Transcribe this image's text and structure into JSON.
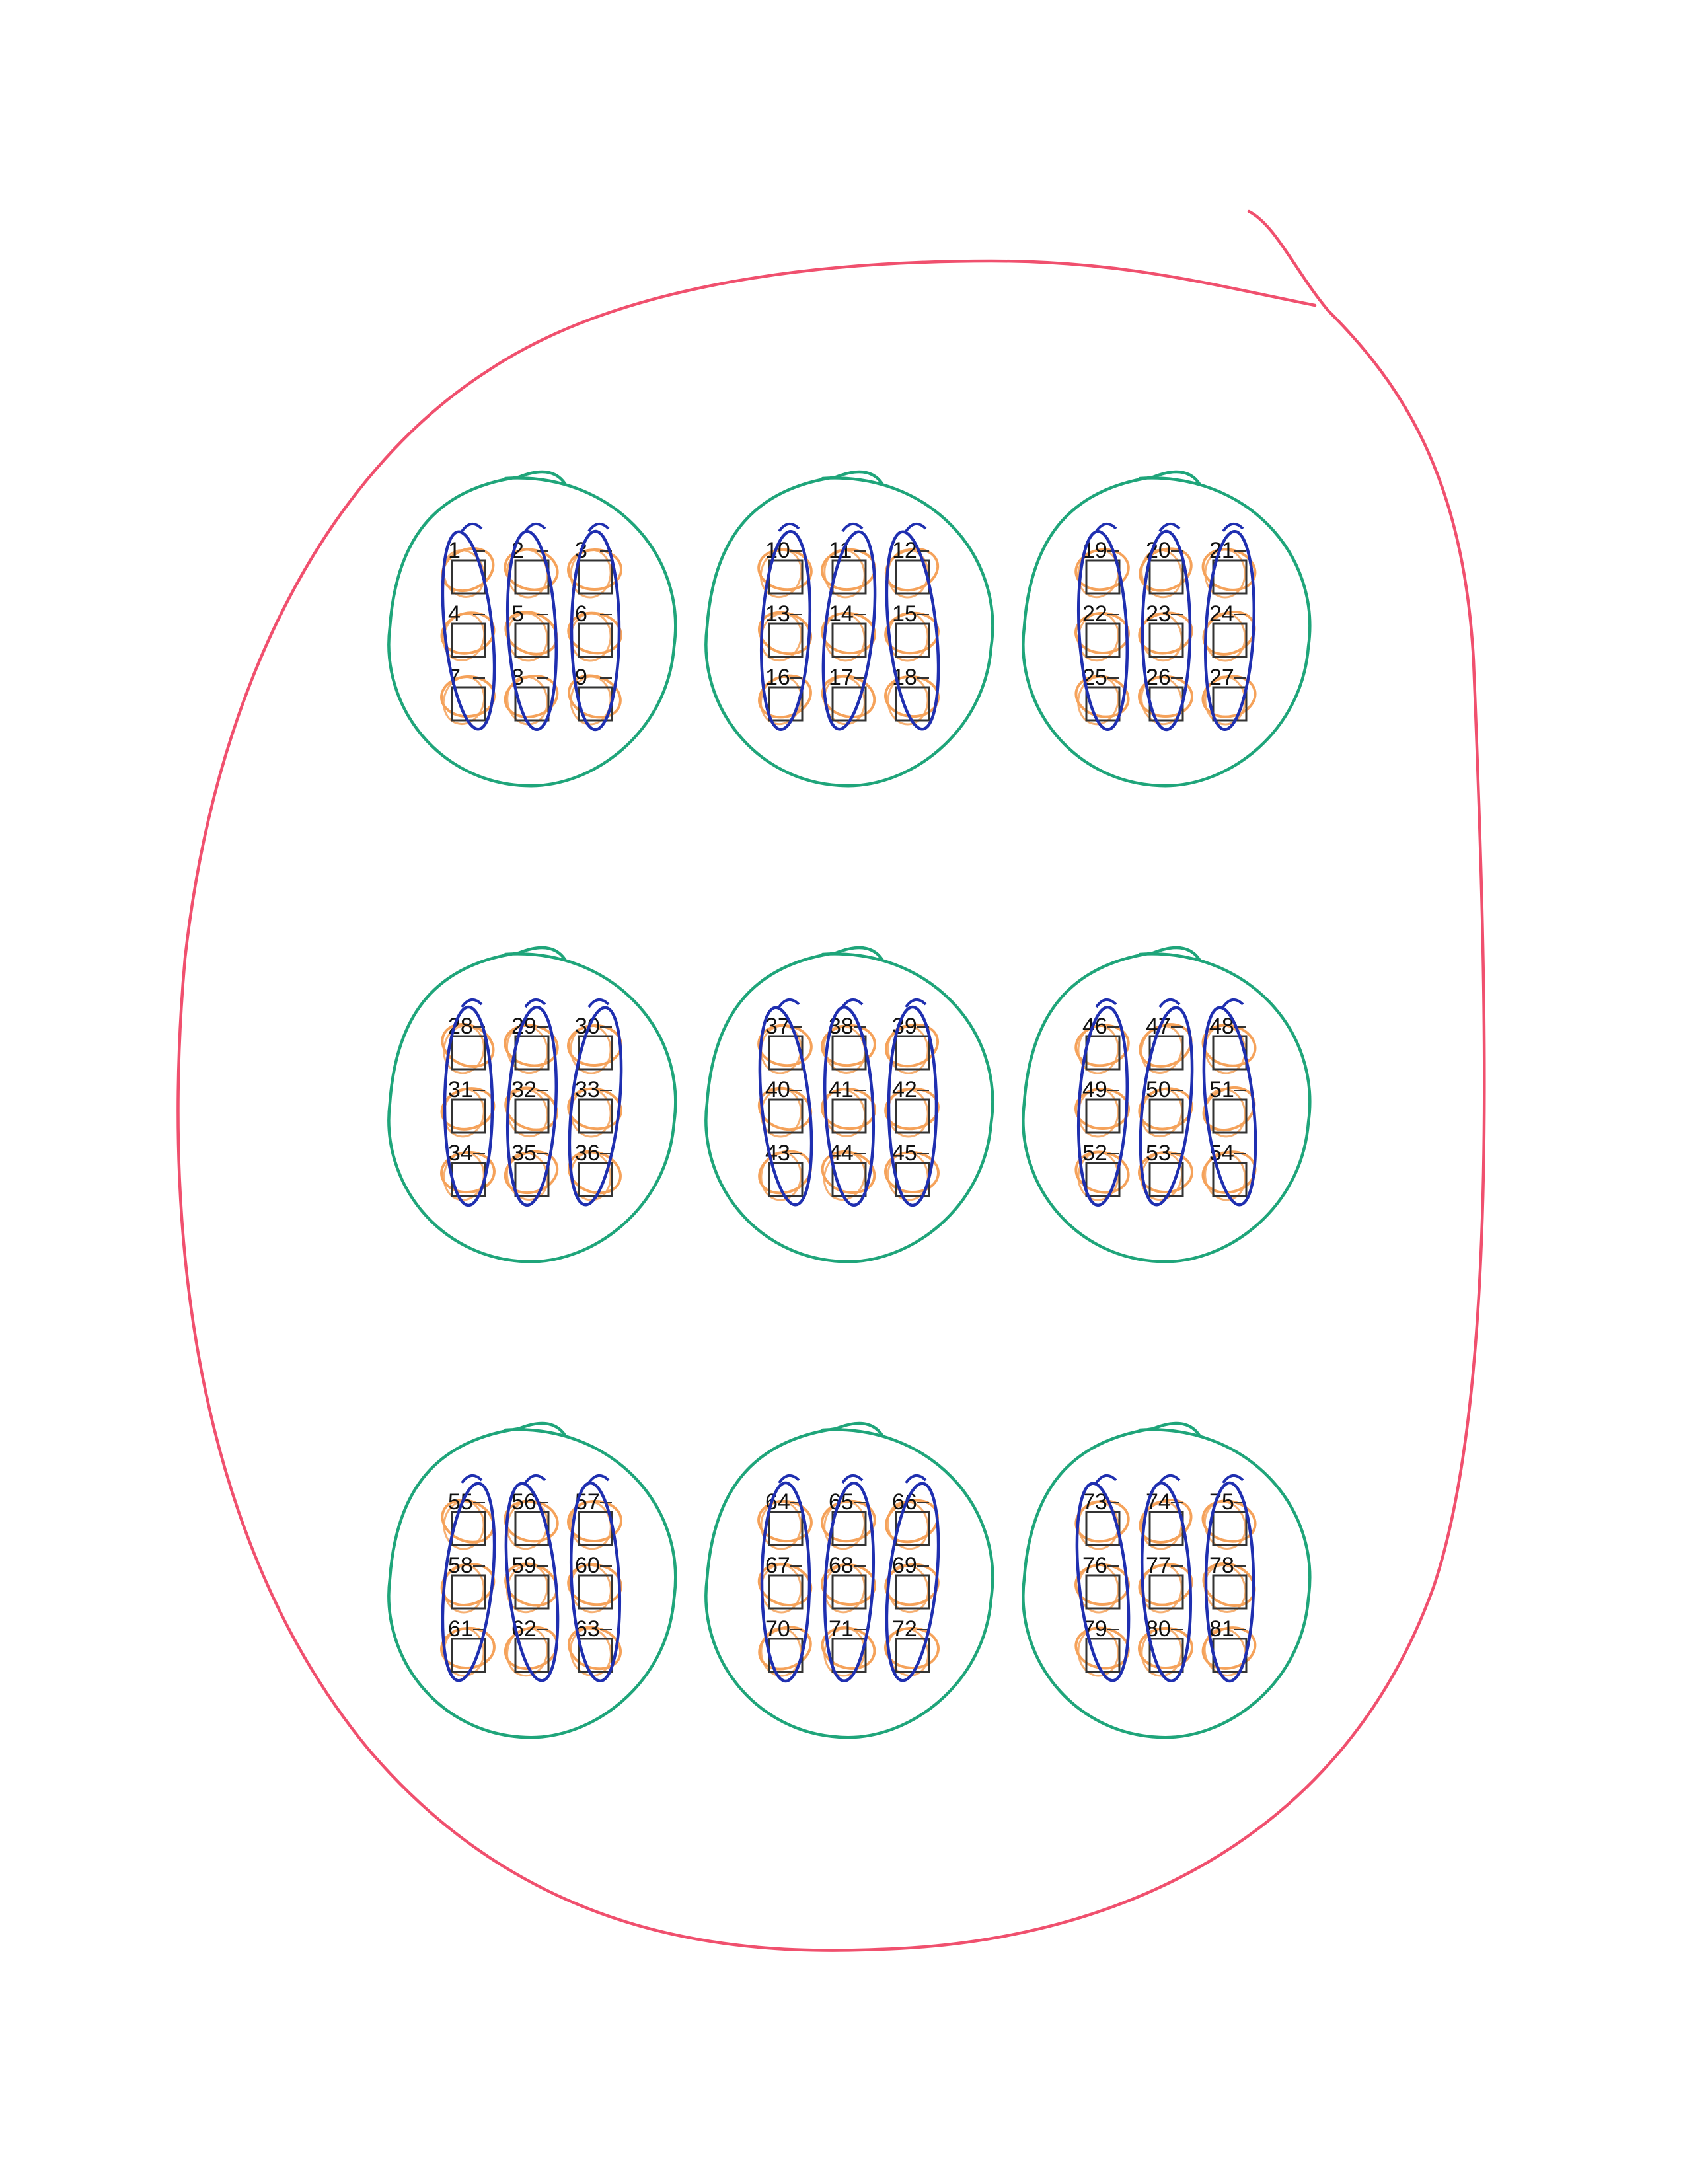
{
  "colors": {
    "paper": "#ffffff",
    "box": "#333333",
    "label": "#111111",
    "orange": "#f5a25a",
    "blue": "#1f2fb0",
    "green": "#1fa57a",
    "red": "#f0506e"
  },
  "boxes": [
    "1",
    "2",
    "3",
    "4",
    "5",
    "6",
    "7",
    "8",
    "9",
    "10",
    "11",
    "12",
    "13",
    "14",
    "15",
    "16",
    "17",
    "18",
    "19",
    "20",
    "21",
    "22",
    "23",
    "24",
    "25",
    "26",
    "27",
    "28",
    "29",
    "30",
    "31",
    "32",
    "33",
    "34",
    "35",
    "36",
    "37",
    "38",
    "39",
    "40",
    "41",
    "42",
    "43",
    "44",
    "45",
    "46",
    "47",
    "48",
    "49",
    "50",
    "51",
    "52",
    "53",
    "54",
    "55",
    "56",
    "57",
    "58",
    "59",
    "60",
    "61",
    "62",
    "63",
    "64",
    "65",
    "66",
    "67",
    "68",
    "69",
    "70",
    "71",
    "72",
    "73",
    "74",
    "75",
    "76",
    "77",
    "78",
    "79",
    "80",
    "81"
  ]
}
